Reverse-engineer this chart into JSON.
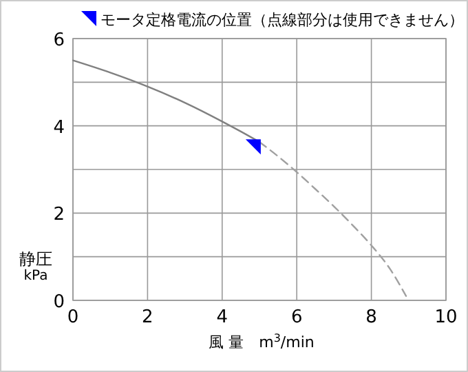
{
  "chart_data": {
    "type": "line",
    "xlabel": "風 量　m$^{3}$/min",
    "ylabel": "静圧\nkPa",
    "xlim": [
      0,
      10
    ],
    "ylim": [
      0,
      6
    ],
    "xticks": [
      0,
      2,
      4,
      6,
      8,
      10
    ],
    "yticks": [
      0,
      {
        "value": 1,
        "label": null
      },
      2,
      {
        "value": 3,
        "label": null
      },
      4,
      {
        "value": 5,
        "label": null
      },
      6
    ],
    "grid": true,
    "legend": "top left",
    "series": [
      {
        "type": "line",
        "color": "#808080",
        "line_style": "solid",
        "x": [
          0,
          1,
          2,
          3,
          4,
          4.5,
          5
        ],
        "values": [
          5.5,
          5.22,
          4.9,
          4.53,
          4.1,
          3.87,
          3.63
        ]
      },
      {
        "type": "line",
        "color": "#a0a0a0",
        "line_style": "dashed",
        "x": [
          5,
          5.5,
          6,
          6.5,
          7,
          7.5,
          8,
          8.5,
          8.93
        ],
        "values": [
          3.63,
          3.3,
          2.94,
          2.55,
          2.15,
          1.72,
          1.26,
          0.72,
          0.1
        ]
      },
      {
        "type": "scatter",
        "name": "モータ定格電流の位置（点線部分は使用できません）",
        "color": "#0000ff",
        "marker": "triangle",
        "x": [
          4.85
        ],
        "values": [
          3.5
        ]
      }
    ]
  }
}
